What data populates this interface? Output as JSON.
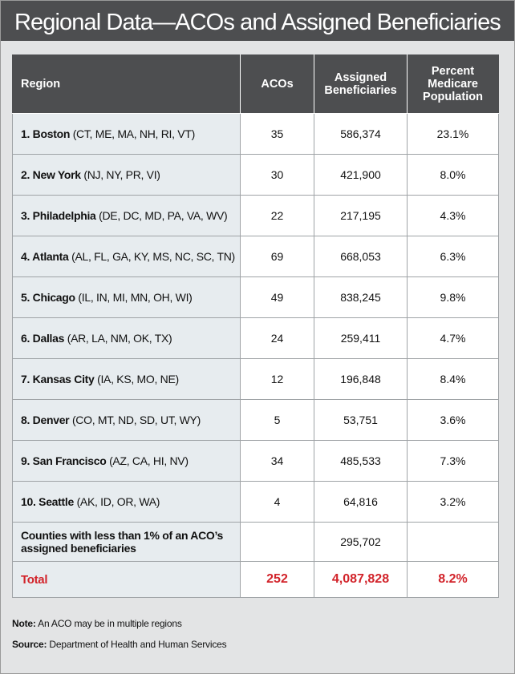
{
  "title": "Regional Data—ACOs and Assigned Beneficiaries",
  "columns": {
    "region": "Region",
    "acos": "ACOs",
    "beneficiaries": "Assigned Beneficiaries",
    "percent": "Percent Medicare Population"
  },
  "rows": [
    {
      "name": "1. Boston",
      "states": "(CT, ME, MA, NH, RI, VT)",
      "acos": "35",
      "beneficiaries": "586,374",
      "percent": "23.1%"
    },
    {
      "name": "2. New York",
      "states": "(NJ, NY, PR, VI)",
      "acos": "30",
      "beneficiaries": "421,900",
      "percent": "8.0%"
    },
    {
      "name": "3. Philadelphia",
      "states": "(DE, DC, MD, PA, VA, WV)",
      "acos": "22",
      "beneficiaries": "217,195",
      "percent": "4.3%"
    },
    {
      "name": "4. Atlanta",
      "states": "(AL, FL, GA, KY, MS, NC, SC, TN)",
      "acos": "69",
      "beneficiaries": "668,053",
      "percent": "6.3%"
    },
    {
      "name": "5. Chicago",
      "states": "(IL, IN, MI, MN, OH, WI)",
      "acos": "49",
      "beneficiaries": "838,245",
      "percent": "9.8%"
    },
    {
      "name": "6. Dallas",
      "states": "(AR, LA, NM, OK, TX)",
      "acos": "24",
      "beneficiaries": "259,411",
      "percent": "4.7%"
    },
    {
      "name": "7. Kansas City",
      "states": "(IA, KS, MO, NE)",
      "acos": "12",
      "beneficiaries": "196,848",
      "percent": "8.4%"
    },
    {
      "name": "8. Denver",
      "states": "(CO, MT, ND, SD, UT, WY)",
      "acos": "5",
      "beneficiaries": "53,751",
      "percent": "3.6%"
    },
    {
      "name": "9. San Francisco",
      "states": "(AZ, CA, HI, NV)",
      "acos": "34",
      "beneficiaries": "485,533",
      "percent": "7.3%"
    },
    {
      "name": "10. Seattle",
      "states": "(AK, ID, OR, WA)",
      "acos": "4",
      "beneficiaries": "64,816",
      "percent": "3.2%"
    }
  ],
  "counties": {
    "label": "Counties with less than 1% of an ACO’s assigned beneficiaries",
    "acos": "",
    "beneficiaries": "295,702",
    "percent": ""
  },
  "total": {
    "label": "Total",
    "acos": "252",
    "beneficiaries": "4,087,828",
    "percent": "8.2%"
  },
  "notes": {
    "note_label": "Note:",
    "note_text": "An ACO may be in multiple regions",
    "source_label": "Source:",
    "source_text": "Department of Health and Human Services"
  },
  "colors": {
    "header_bg": "#4d4e50",
    "region_col_bg": "#e7ecef",
    "card_bg": "#e3e4e5",
    "total_text": "#d2232a"
  }
}
